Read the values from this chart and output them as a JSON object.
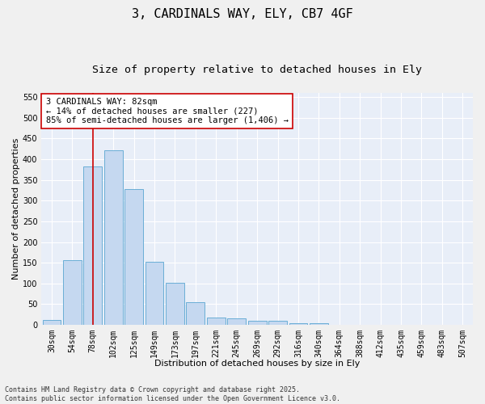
{
  "title_line1": "3, CARDINALS WAY, ELY, CB7 4GF",
  "title_line2": "Size of property relative to detached houses in Ely",
  "xlabel": "Distribution of detached houses by size in Ely",
  "ylabel": "Number of detached properties",
  "categories": [
    "30sqm",
    "54sqm",
    "78sqm",
    "102sqm",
    "125sqm",
    "149sqm",
    "173sqm",
    "197sqm",
    "221sqm",
    "245sqm",
    "269sqm",
    "292sqm",
    "316sqm",
    "340sqm",
    "364sqm",
    "388sqm",
    "412sqm",
    "435sqm",
    "459sqm",
    "483sqm",
    "507sqm"
  ],
  "values": [
    12,
    157,
    383,
    422,
    327,
    153,
    101,
    55,
    18,
    16,
    9,
    9,
    5,
    5,
    1,
    1,
    1,
    1,
    1,
    1,
    1
  ],
  "bar_color": "#c5d8f0",
  "bar_edge_color": "#6aaed6",
  "vline_x": 2,
  "vline_color": "#cc0000",
  "annotation_text": "3 CARDINALS WAY: 82sqm\n← 14% of detached houses are smaller (227)\n85% of semi-detached houses are larger (1,406) →",
  "annotation_box_color": "#ffffff",
  "annotation_box_edge": "#cc0000",
  "ylim": [
    0,
    560
  ],
  "yticks": [
    0,
    50,
    100,
    150,
    200,
    250,
    300,
    350,
    400,
    450,
    500,
    550
  ],
  "fig_bg_color": "#f0f0f0",
  "plot_bg_color": "#e8eef8",
  "footer_text": "Contains HM Land Registry data © Crown copyright and database right 2025.\nContains public sector information licensed under the Open Government Licence v3.0.",
  "title_fontsize": 11,
  "subtitle_fontsize": 9.5,
  "axis_label_fontsize": 8,
  "tick_fontsize": 7,
  "annotation_fontsize": 7.5,
  "footer_fontsize": 6
}
